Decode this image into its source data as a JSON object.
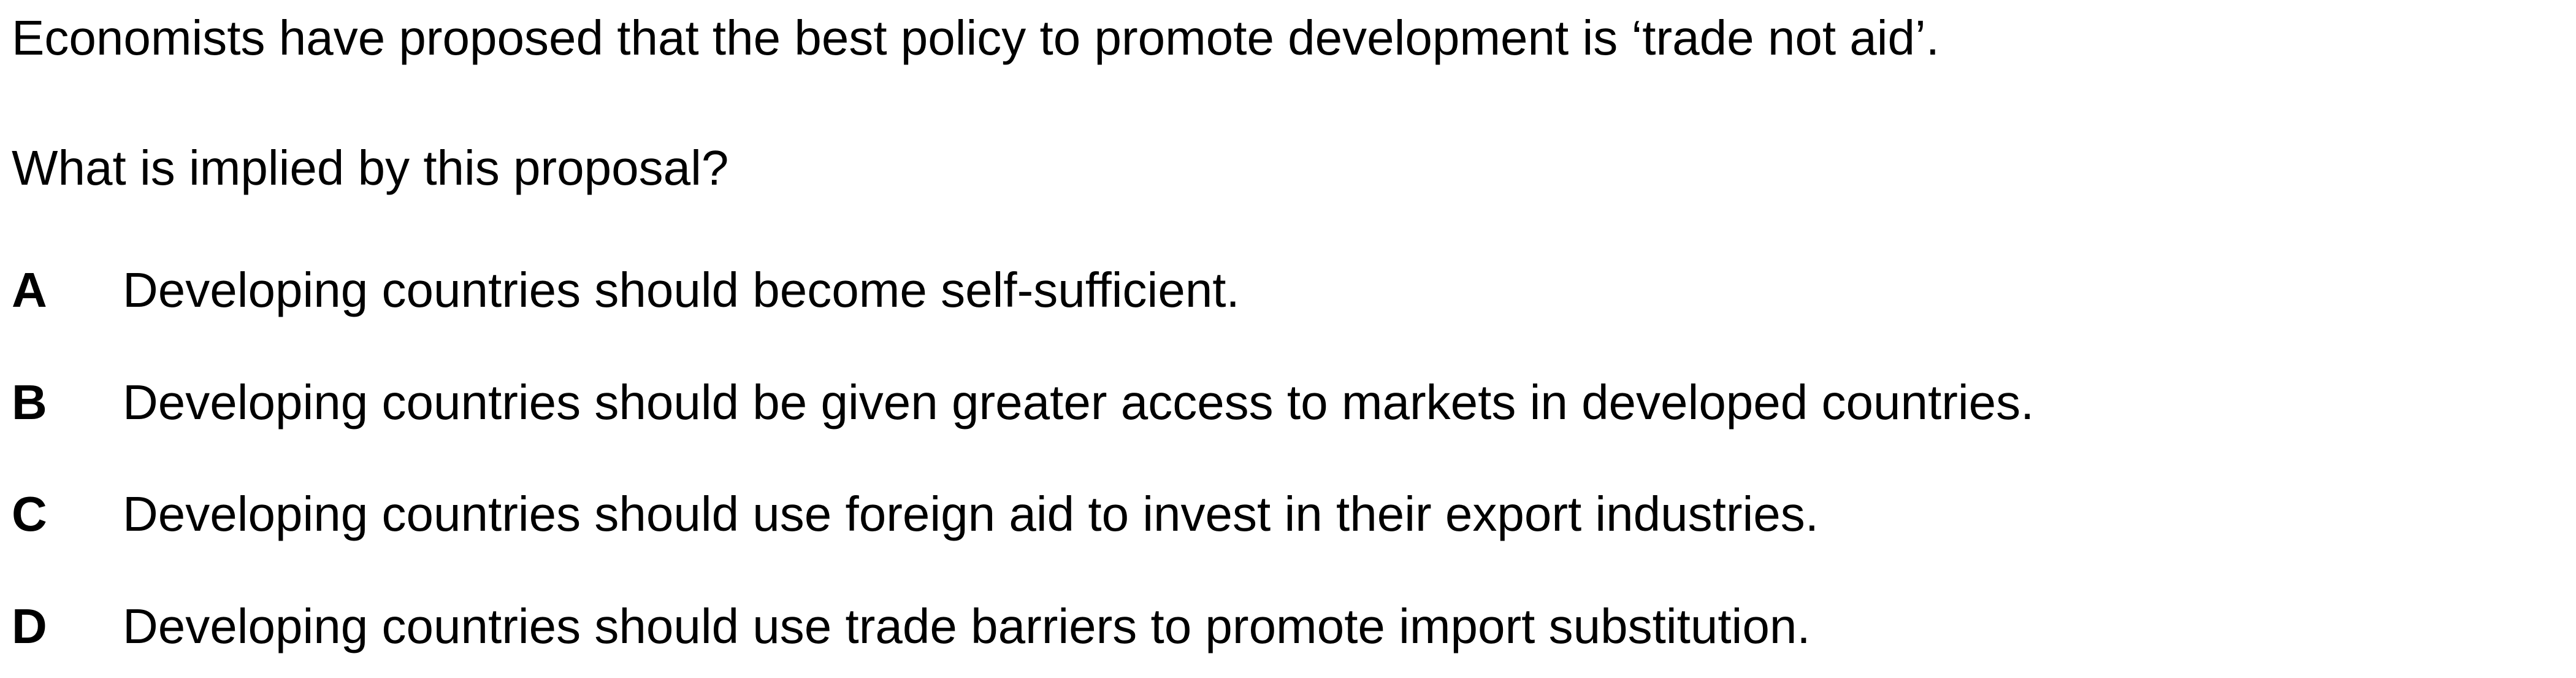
{
  "question": {
    "stem": "Economists have proposed that the best policy to promote development is ‘trade not aid’.",
    "prompt": "What is implied by this proposal?",
    "options": [
      {
        "letter": "A",
        "text": "Developing countries should become self-sufficient."
      },
      {
        "letter": "B",
        "text": "Developing countries should be given greater access to markets in developed countries."
      },
      {
        "letter": "C",
        "text": "Developing countries should use foreign aid to invest in their export industries."
      },
      {
        "letter": "D",
        "text": "Developing countries should use trade barriers to promote import substitution."
      }
    ]
  }
}
